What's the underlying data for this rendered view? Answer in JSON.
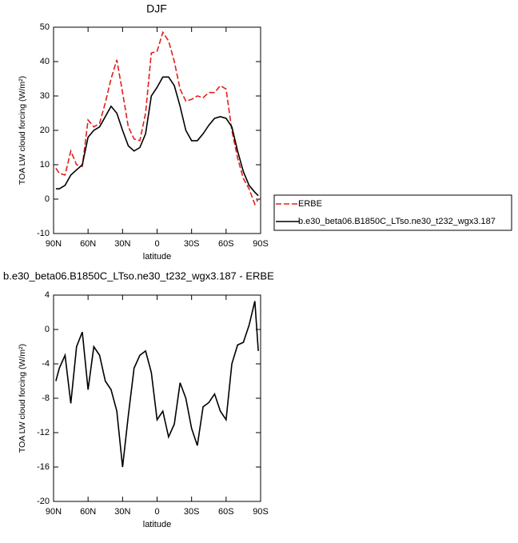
{
  "chart_data": [
    {
      "type": "line",
      "title": "DJF",
      "xlabel": "latitude",
      "ylabel": "TOA LW cloud forcing (W/m²)",
      "x": [
        88,
        85,
        80,
        75,
        70,
        65,
        60,
        55,
        50,
        45,
        40,
        35,
        30,
        25,
        20,
        15,
        10,
        5,
        0,
        -5,
        -10,
        -15,
        -20,
        -25,
        -30,
        -35,
        -40,
        -45,
        -50,
        -55,
        -60,
        -65,
        -70,
        -75,
        -80,
        -85,
        -88
      ],
      "series": [
        {
          "name": "ERBE",
          "color": "#e0201b",
          "style": "dashed",
          "values": [
            9,
            7.5,
            7,
            14,
            10,
            9.5,
            23,
            21,
            22,
            28,
            35,
            40.5,
            31,
            21,
            17.5,
            17,
            25,
            42.5,
            43,
            48.5,
            46,
            40,
            32,
            28.5,
            29,
            30,
            29.5,
            31,
            31,
            33,
            32,
            20,
            12,
            6,
            3,
            -1.5,
            0
          ]
        },
        {
          "name": "b.e30_beta06.B1850C_LTso.ne30_t232_wgx3.187",
          "color": "#000000",
          "style": "solid",
          "values": [
            3,
            3,
            4,
            7,
            8.5,
            10,
            18,
            20,
            21,
            24,
            27,
            25,
            20,
            15.5,
            14,
            15,
            19,
            30,
            32.5,
            35.5,
            35.5,
            33,
            27,
            20,
            17,
            17,
            19,
            21.5,
            23.5,
            24,
            23.5,
            21,
            14,
            8,
            4,
            2,
            1
          ]
        }
      ],
      "xlim": [
        90,
        -90
      ],
      "xticks": [
        {
          "value": 90,
          "label": "90N"
        },
        {
          "value": 60,
          "label": "60N"
        },
        {
          "value": 30,
          "label": "30N"
        },
        0,
        {
          "value": -30,
          "label": "30S"
        },
        {
          "value": -60,
          "label": "60S"
        },
        {
          "value": -90,
          "label": "90S"
        }
      ],
      "ylim": [
        -10,
        50
      ],
      "yticks": [
        -10,
        0,
        10,
        20,
        30,
        40,
        50
      ],
      "legend": "right"
    },
    {
      "type": "line",
      "title": "b.e30_beta06.B1850C_LTso.ne30_t232_wgx3.187 - ERBE",
      "xlabel": "latitude",
      "ylabel": "TOA LW cloud forcing (W/m²)",
      "x": [
        88,
        85,
        80,
        75,
        70,
        65,
        60,
        55,
        50,
        45,
        40,
        35,
        30,
        25,
        20,
        15,
        10,
        5,
        0,
        -5,
        -10,
        -15,
        -20,
        -25,
        -30,
        -35,
        -40,
        -45,
        -50,
        -55,
        -60,
        -65,
        -70,
        -75,
        -80,
        -85,
        -88
      ],
      "series": [
        {
          "color": "#000000",
          "style": "solid",
          "values": [
            -6,
            -4.5,
            -3,
            -8.6,
            -2,
            -0.3,
            -7,
            -2,
            -3,
            -6,
            -7,
            -9.5,
            -16,
            -10,
            -4.5,
            -3,
            -2.5,
            -5,
            -10.5,
            -9.5,
            -12.5,
            -11,
            -6.2,
            -8,
            -11.5,
            -13.5,
            -9,
            -8.5,
            -7.5,
            -9.5,
            -10.5,
            -4,
            -1.8,
            -1.5,
            0.5,
            3.3,
            -2.5
          ]
        }
      ],
      "xlim": [
        90,
        -90
      ],
      "xticks": [
        {
          "value": 90,
          "label": "90N"
        },
        {
          "value": 60,
          "label": "60N"
        },
        {
          "value": 30,
          "label": "30N"
        },
        0,
        {
          "value": -30,
          "label": "30S"
        },
        {
          "value": -60,
          "label": "60S"
        },
        {
          "value": -90,
          "label": "90S"
        }
      ],
      "ylim": [
        -20,
        4
      ],
      "yticks": [
        -20,
        -16,
        -12,
        -8,
        -4,
        0,
        4
      ]
    }
  ]
}
